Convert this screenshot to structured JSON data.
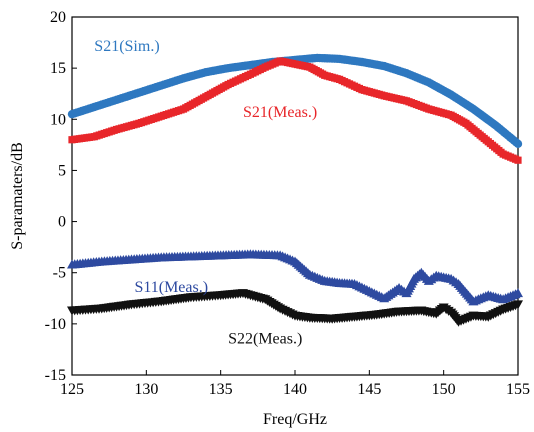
{
  "chart_data": {
    "type": "scatter",
    "xlabel": "Freq/GHz",
    "ylabel": "S-paramaters/dB",
    "xlim": [
      125,
      155
    ],
    "ylim": [
      -15,
      20
    ],
    "xticks": [
      125,
      130,
      135,
      140,
      145,
      150,
      155
    ],
    "yticks": [
      -15,
      -10,
      -5,
      0,
      5,
      10,
      15,
      20
    ],
    "grid": false,
    "series": [
      {
        "name": "S21(Sim.)",
        "marker": "circle",
        "color": "#2e78c0",
        "label_pos": [
          126.5,
          16.7
        ],
        "points": [
          [
            125,
            10.5
          ],
          [
            126.5,
            11.2
          ],
          [
            128,
            11.9
          ],
          [
            129.5,
            12.6
          ],
          [
            131,
            13.3
          ],
          [
            132.5,
            14.0
          ],
          [
            134,
            14.6
          ],
          [
            135.5,
            15.0
          ],
          [
            137,
            15.3
          ],
          [
            138.5,
            15.6
          ],
          [
            140,
            15.8
          ],
          [
            141.5,
            16.0
          ],
          [
            143,
            15.9
          ],
          [
            144.5,
            15.6
          ],
          [
            146,
            15.2
          ],
          [
            147.5,
            14.5
          ],
          [
            149,
            13.6
          ],
          [
            150.5,
            12.4
          ],
          [
            152,
            11.0
          ],
          [
            153.5,
            9.4
          ],
          [
            155,
            7.6
          ]
        ]
      },
      {
        "name": "S21(Meas.)",
        "marker": "square",
        "color": "#e8262a",
        "label_pos": [
          136.5,
          10.2
        ],
        "points": [
          [
            125,
            8.0
          ],
          [
            126.5,
            8.3
          ],
          [
            128,
            9.0
          ],
          [
            129.5,
            9.6
          ],
          [
            131,
            10.3
          ],
          [
            132.5,
            11.0
          ],
          [
            134,
            12.2
          ],
          [
            135.5,
            13.4
          ],
          [
            137,
            14.4
          ],
          [
            138,
            15.1
          ],
          [
            139,
            15.7
          ],
          [
            140,
            15.4
          ],
          [
            141,
            15.1
          ],
          [
            142,
            14.3
          ],
          [
            143,
            13.9
          ],
          [
            144.5,
            12.9
          ],
          [
            146,
            12.3
          ],
          [
            147.5,
            11.8
          ],
          [
            149,
            11.0
          ],
          [
            150.5,
            10.4
          ],
          [
            151.5,
            9.6
          ],
          [
            153,
            7.8
          ],
          [
            154,
            6.6
          ],
          [
            155,
            6.0
          ]
        ]
      },
      {
        "name": "S11(Meas.)",
        "marker": "triangle-up",
        "color": "#2e4aa0",
        "label_pos": [
          129.2,
          -6.9
        ],
        "points": [
          [
            125,
            -4.2
          ],
          [
            127,
            -3.9
          ],
          [
            129,
            -3.7
          ],
          [
            131,
            -3.5
          ],
          [
            133,
            -3.4
          ],
          [
            135,
            -3.3
          ],
          [
            137,
            -3.2
          ],
          [
            139,
            -3.3
          ],
          [
            140,
            -3.9
          ],
          [
            141,
            -5.2
          ],
          [
            142,
            -5.8
          ],
          [
            143,
            -6.0
          ],
          [
            144,
            -6.1
          ],
          [
            145,
            -6.8
          ],
          [
            146,
            -7.5
          ],
          [
            147,
            -6.5
          ],
          [
            147.5,
            -7.0
          ],
          [
            148,
            -5.6
          ],
          [
            148.5,
            -5.0
          ],
          [
            149,
            -5.8
          ],
          [
            149.5,
            -5.3
          ],
          [
            150.5,
            -5.6
          ],
          [
            151,
            -6.1
          ],
          [
            152,
            -7.8
          ],
          [
            153,
            -7.2
          ],
          [
            154,
            -7.6
          ],
          [
            155,
            -7.0
          ]
        ]
      },
      {
        "name": "S22(Meas.)",
        "marker": "triangle-down",
        "color": "#111111",
        "label_pos": [
          135.5,
          -11.9
        ],
        "points": [
          [
            125,
            -8.7
          ],
          [
            127,
            -8.5
          ],
          [
            129,
            -8.1
          ],
          [
            131,
            -7.8
          ],
          [
            133,
            -7.4
          ],
          [
            135,
            -7.2
          ],
          [
            136.5,
            -7.0
          ],
          [
            138,
            -7.6
          ],
          [
            139,
            -8.5
          ],
          [
            140,
            -9.2
          ],
          [
            141,
            -9.4
          ],
          [
            142.5,
            -9.5
          ],
          [
            144,
            -9.3
          ],
          [
            145.5,
            -9.1
          ],
          [
            147,
            -8.8
          ],
          [
            148.5,
            -8.7
          ],
          [
            149.5,
            -9.0
          ],
          [
            150,
            -8.4
          ],
          [
            150.5,
            -8.9
          ],
          [
            151,
            -9.8
          ],
          [
            152,
            -9.2
          ],
          [
            153,
            -9.3
          ],
          [
            154,
            -8.6
          ],
          [
            155,
            -8.1
          ]
        ]
      }
    ]
  }
}
